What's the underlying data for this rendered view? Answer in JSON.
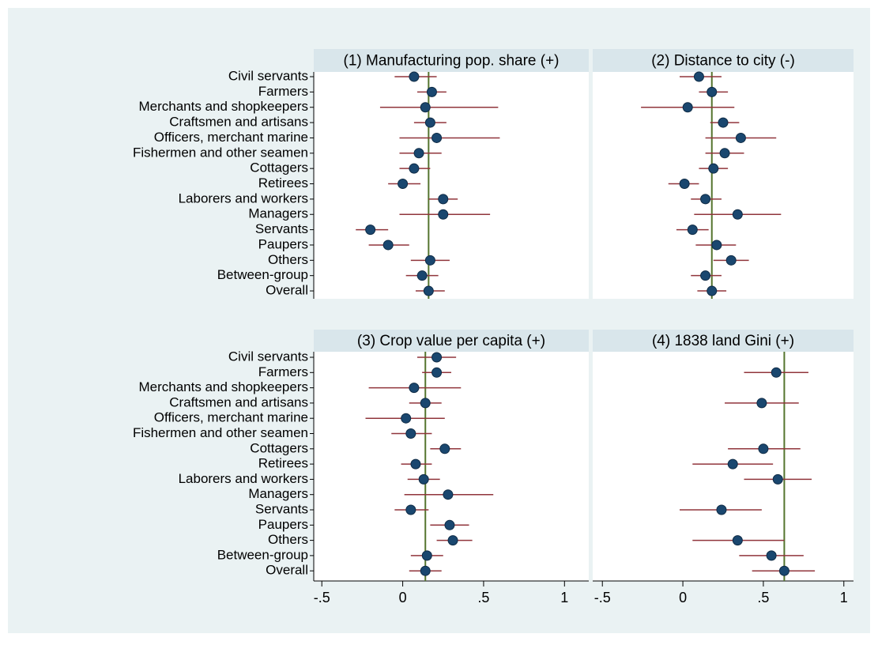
{
  "chart_data": [
    {
      "type": "dot-ci",
      "title": "(1) Manufacturing pop. share (+)",
      "categories": [
        "Civil servants",
        "Farmers",
        "Merchants and shopkeepers",
        "Craftsmen and artisans",
        "Officers, merchant marine",
        "Fishermen and other seamen",
        "Cottagers",
        "Retirees",
        "Laborers and workers",
        "Managers",
        "Servants",
        "Paupers",
        "Others",
        "Between-group",
        "Overall"
      ],
      "values": [
        0.07,
        0.18,
        0.14,
        0.17,
        0.21,
        0.1,
        0.07,
        0.0,
        0.25,
        0.25,
        -0.2,
        -0.09,
        0.17,
        0.12,
        0.16
      ],
      "lower": [
        -0.05,
        0.09,
        -0.14,
        0.07,
        -0.02,
        -0.02,
        -0.02,
        -0.09,
        0.16,
        -0.02,
        -0.29,
        -0.21,
        0.05,
        0.02,
        0.08
      ],
      "upper": [
        0.21,
        0.27,
        0.59,
        0.27,
        0.6,
        0.24,
        0.17,
        0.11,
        0.34,
        0.54,
        -0.09,
        0.04,
        0.29,
        0.22,
        0.26
      ],
      "reference": 0.16,
      "xlim": [
        -0.55,
        1.15
      ],
      "point_color": "#1a476f",
      "ci_color": "#90353b",
      "line_color": "#55752f"
    },
    {
      "type": "dot-ci",
      "title": "(2) Distance to city (-)",
      "values": [
        0.1,
        0.18,
        0.03,
        0.25,
        0.36,
        0.26,
        0.19,
        0.01,
        0.14,
        0.34,
        0.06,
        0.21,
        0.3,
        0.14,
        0.18
      ],
      "lower": [
        -0.02,
        0.1,
        -0.26,
        0.17,
        0.14,
        0.14,
        0.1,
        -0.09,
        0.05,
        0.07,
        -0.04,
        0.08,
        0.19,
        0.05,
        0.09
      ],
      "upper": [
        0.24,
        0.28,
        0.32,
        0.35,
        0.58,
        0.38,
        0.28,
        0.1,
        0.24,
        0.61,
        0.16,
        0.33,
        0.41,
        0.24,
        0.27
      ],
      "reference": 0.18,
      "xlim": [
        -0.56,
        1.06
      ],
      "point_color": "#1a476f",
      "ci_color": "#90353b",
      "line_color": "#55752f"
    },
    {
      "type": "dot-ci",
      "title": "(3) Crop value per capita (+)",
      "categories": [
        "Civil servants",
        "Farmers",
        "Merchants and shopkeepers",
        "Craftsmen and artisans",
        "Officers, merchant marine",
        "Fishermen and other seamen",
        "Cottagers",
        "Retirees",
        "Laborers and workers",
        "Managers",
        "Servants",
        "Paupers",
        "Others",
        "Between-group",
        "Overall"
      ],
      "values": [
        0.21,
        0.21,
        0.07,
        0.14,
        0.02,
        0.05,
        0.26,
        0.08,
        0.13,
        0.28,
        0.05,
        0.29,
        0.31,
        0.15,
        0.14
      ],
      "lower": [
        0.09,
        0.12,
        -0.21,
        0.04,
        -0.23,
        -0.07,
        0.17,
        -0.01,
        0.03,
        0.01,
        -0.05,
        0.17,
        0.21,
        0.05,
        0.04
      ],
      "upper": [
        0.33,
        0.3,
        0.36,
        0.24,
        0.26,
        0.18,
        0.36,
        0.18,
        0.23,
        0.56,
        0.16,
        0.41,
        0.43,
        0.25,
        0.24
      ],
      "reference": 0.14,
      "xlim": [
        -0.55,
        1.15
      ],
      "xticks": [
        {
          "value": -0.5,
          "label": "-.5"
        },
        0,
        {
          "value": 0.5,
          "label": ".5"
        },
        1
      ],
      "point_color": "#1a476f",
      "ci_color": "#90353b",
      "line_color": "#55752f"
    },
    {
      "type": "dot-ci",
      "title": "(4) 1838 land Gini (+)",
      "values": [
        null,
        0.58,
        null,
        0.49,
        null,
        null,
        0.5,
        0.31,
        0.59,
        null,
        0.24,
        null,
        0.34,
        0.55,
        0.63
      ],
      "lower": [
        null,
        0.38,
        null,
        0.26,
        null,
        null,
        0.28,
        0.06,
        0.38,
        null,
        -0.02,
        null,
        0.06,
        0.35,
        0.43
      ],
      "upper": [
        null,
        0.78,
        null,
        0.72,
        null,
        null,
        0.73,
        0.56,
        0.8,
        null,
        0.49,
        null,
        0.63,
        0.75,
        0.82
      ],
      "reference": 0.63,
      "xlim": [
        -0.56,
        1.06
      ],
      "xticks": [
        {
          "value": -0.5,
          "label": "-.5"
        },
        0,
        {
          "value": 0.5,
          "label": ".5"
        },
        1
      ],
      "point_color": "#1a476f",
      "ci_color": "#90353b",
      "line_color": "#55752f"
    }
  ]
}
